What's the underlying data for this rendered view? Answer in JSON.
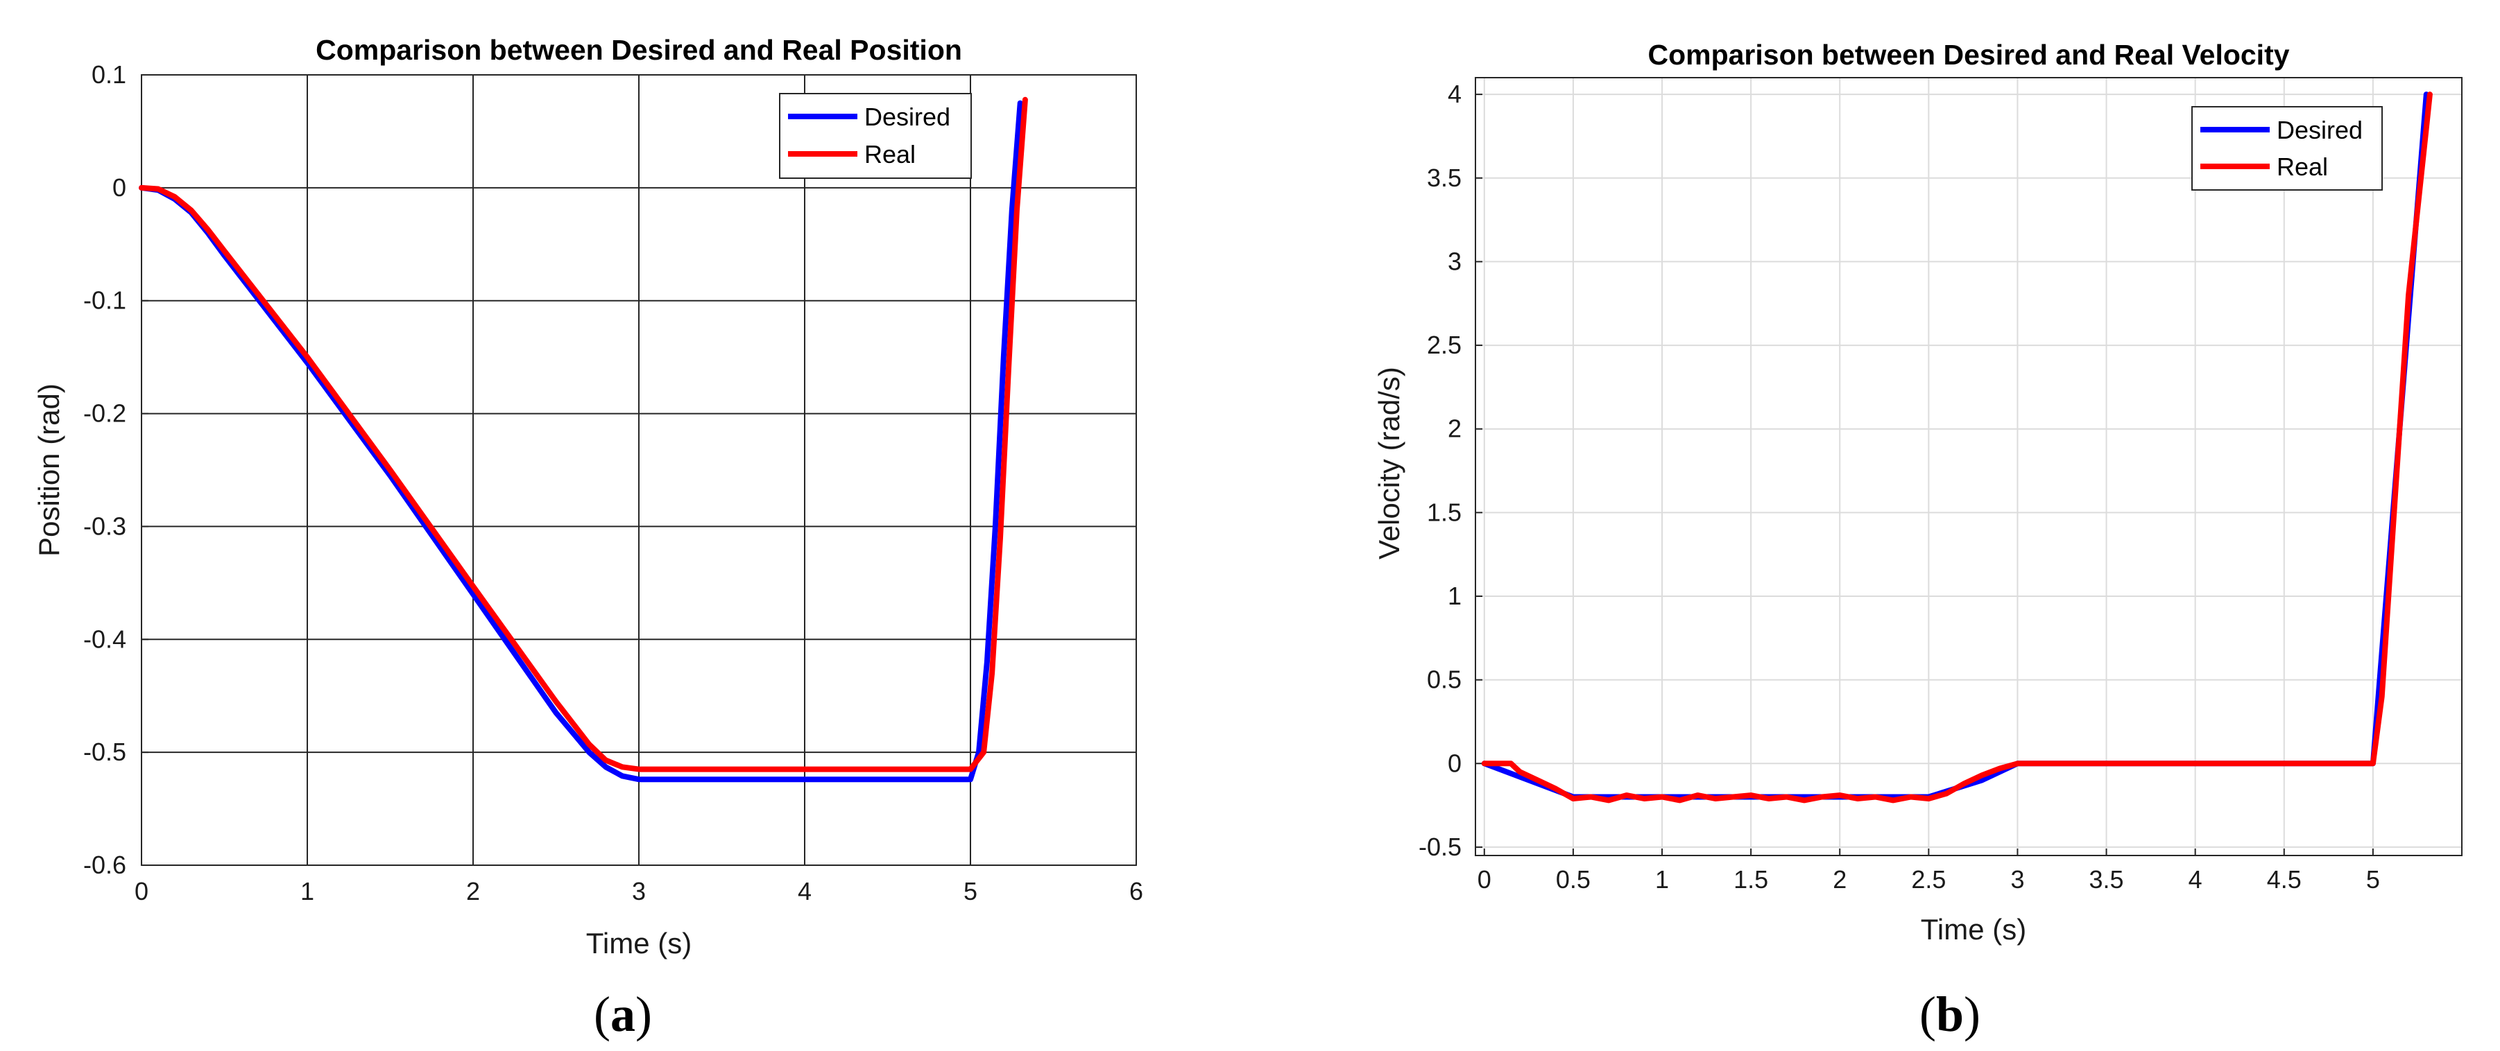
{
  "chart_data": [
    {
      "type": "line",
      "title": "Comparison between Desired and Real Position",
      "xlabel": "Time (s)",
      "ylabel": "Position (rad)",
      "xlim": [
        0,
        6
      ],
      "ylim": [
        -0.6,
        0.1
      ],
      "xticks": [
        0,
        1,
        2,
        3,
        4,
        5,
        6
      ],
      "xtick_labels": [
        "0",
        "1",
        "2",
        "3",
        "4",
        "5",
        "6"
      ],
      "yticks": [
        0.1,
        0,
        -0.1,
        -0.2,
        -0.3,
        -0.4,
        -0.5,
        -0.6
      ],
      "ytick_labels": [
        "0.1",
        "0",
        "-0.1",
        "-0.2",
        "-0.3",
        "-0.4",
        "-0.5",
        "-0.6"
      ],
      "grid": true,
      "legend_position": "top-right",
      "series": [
        {
          "name": "Desired",
          "color": "#0000ff",
          "x": [
            0,
            0.1,
            0.2,
            0.3,
            0.4,
            0.5,
            1.0,
            1.5,
            2.0,
            2.5,
            2.7,
            2.8,
            2.9,
            3.0,
            4.0,
            5.0,
            5.05,
            5.1,
            5.15,
            5.2,
            5.25,
            5.3
          ],
          "y": [
            0,
            -0.002,
            -0.01,
            -0.022,
            -0.04,
            -0.06,
            -0.155,
            -0.255,
            -0.36,
            -0.465,
            -0.5,
            -0.513,
            -0.521,
            -0.524,
            -0.524,
            -0.524,
            -0.5,
            -0.42,
            -0.3,
            -0.15,
            -0.02,
            0.075
          ]
        },
        {
          "name": "Real",
          "color": "#ff0000",
          "x": [
            0,
            0.1,
            0.2,
            0.3,
            0.4,
            0.5,
            1.0,
            1.5,
            2.0,
            2.5,
            2.7,
            2.8,
            2.9,
            3.0,
            4.0,
            5.0,
            5.08,
            5.13,
            5.18,
            5.23,
            5.28,
            5.33
          ],
          "y": [
            0,
            -0.001,
            -0.008,
            -0.02,
            -0.037,
            -0.056,
            -0.15,
            -0.25,
            -0.353,
            -0.455,
            -0.493,
            -0.507,
            -0.513,
            -0.515,
            -0.515,
            -0.515,
            -0.5,
            -0.43,
            -0.31,
            -0.16,
            -0.02,
            0.078
          ]
        }
      ],
      "caption": "(a)"
    },
    {
      "type": "line",
      "title": "Comparison between Desired and Real Velocity",
      "xlabel": "Time (s)",
      "ylabel": "Velocity (rad/s)",
      "xlim": [
        -0.05,
        5.5
      ],
      "ylim": [
        -0.55,
        4.1
      ],
      "xticks": [
        0,
        0.5,
        1,
        1.5,
        2,
        2.5,
        3,
        3.5,
        4,
        4.5,
        5
      ],
      "xtick_labels": [
        "0",
        "0.5",
        "1",
        "1.5",
        "2",
        "2.5",
        "3",
        "3.5",
        "4",
        "4.5",
        "5"
      ],
      "yticks": [
        -0.5,
        0,
        0.5,
        1,
        1.5,
        2,
        2.5,
        3,
        3.5,
        4
      ],
      "ytick_labels": [
        "-0.5",
        "0",
        "0.5",
        "1",
        "1.5",
        "2",
        "2.5",
        "3",
        "3.5",
        "4"
      ],
      "grid": true,
      "legend_position": "top-right",
      "series": [
        {
          "name": "Desired",
          "color": "#0000ff",
          "x": [
            0,
            0.5,
            1,
            1.5,
            2,
            2.5,
            2.8,
            3.0,
            3.5,
            4,
            4.5,
            5.0,
            5.3
          ],
          "y": [
            0,
            -0.2,
            -0.2,
            -0.2,
            -0.2,
            -0.2,
            -0.1,
            0,
            0,
            0,
            0,
            0,
            4.0
          ]
        },
        {
          "name": "Real",
          "color": "#ff0000",
          "x": [
            0,
            0.05,
            0.1,
            0.15,
            0.2,
            0.3,
            0.4,
            0.5,
            0.6,
            0.7,
            0.8,
            0.9,
            1.0,
            1.1,
            1.2,
            1.3,
            1.4,
            1.5,
            1.6,
            1.7,
            1.8,
            1.9,
            2.0,
            2.1,
            2.2,
            2.3,
            2.4,
            2.5,
            2.6,
            2.7,
            2.8,
            2.9,
            3.0,
            3.5,
            4.0,
            4.5,
            5.0,
            5.05,
            5.1,
            5.15,
            5.2,
            5.25,
            5.3,
            5.32
          ],
          "y": [
            0,
            0,
            0,
            0,
            -0.05,
            -0.1,
            -0.15,
            -0.21,
            -0.2,
            -0.22,
            -0.19,
            -0.21,
            -0.2,
            -0.22,
            -0.19,
            -0.21,
            -0.2,
            -0.19,
            -0.21,
            -0.2,
            -0.22,
            -0.2,
            -0.19,
            -0.21,
            -0.2,
            -0.22,
            -0.2,
            -0.21,
            -0.18,
            -0.12,
            -0.07,
            -0.03,
            0,
            0,
            0,
            0,
            0,
            0.4,
            1.2,
            2.0,
            2.8,
            3.3,
            3.8,
            4.0
          ]
        }
      ],
      "caption": "(b)"
    }
  ]
}
